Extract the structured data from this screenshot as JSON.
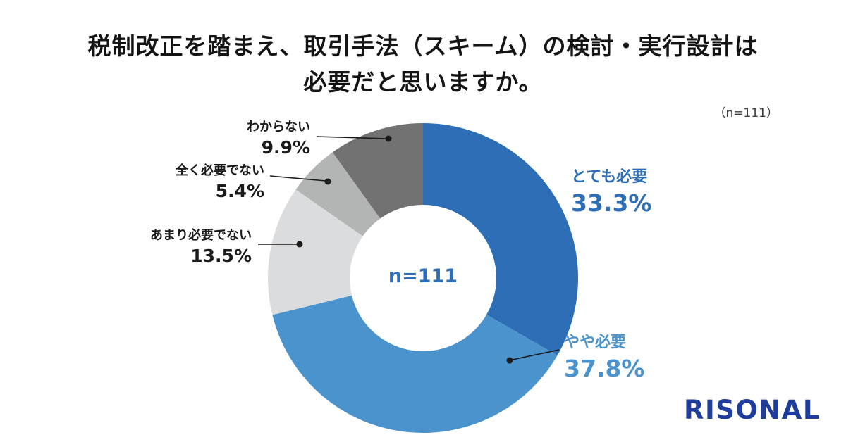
{
  "header": {
    "title_line1": "税制改正を踏まえ、取引手法（スキーム）の検討・実行設計は",
    "title_line2": "必要だと思いますか。",
    "sample_note": "（n=111）"
  },
  "chart_data": {
    "type": "pie",
    "variant": "donut",
    "title": "税制改正を踏まえ、取引手法（スキーム）の検討・実行設計は必要だと思いますか。",
    "sample_size": 111,
    "center_label": "n=111",
    "start_angle_deg": 0,
    "direction": "clockwise",
    "legend_position": "none",
    "segments": [
      {
        "label": "とても必要",
        "value": 33.3,
        "display": "33.3%",
        "color": "#2e6eb6",
        "label_color": "#2e6eb6"
      },
      {
        "label": "やや必要",
        "value": 37.8,
        "display": "37.8%",
        "color": "#4b93cd",
        "label_color": "#4b93cd"
      },
      {
        "label": "あまり必要でない",
        "value": 13.5,
        "display": "13.5%",
        "color": "#dbdcdd",
        "label_color": "#1a1a1a"
      },
      {
        "label": "全く必要でない",
        "value": 5.4,
        "display": "5.4%",
        "color": "#b3b4b4",
        "label_color": "#1a1a1a"
      },
      {
        "label": "わからない",
        "value": 9.9,
        "display": "9.9%",
        "color": "#727273",
        "label_color": "#1a1a1a"
      }
    ]
  },
  "branding": {
    "logo_text": "RISONAL",
    "logo_color": "#1e3d9c"
  }
}
